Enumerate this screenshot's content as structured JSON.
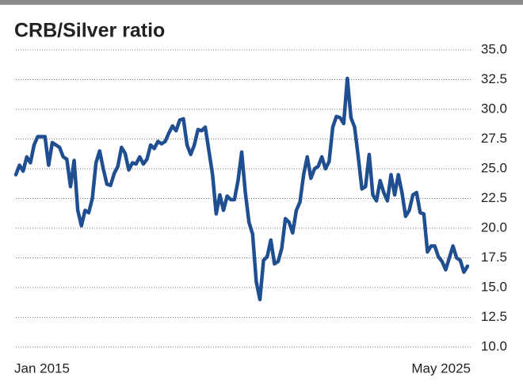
{
  "chart_data": {
    "type": "line",
    "title": "CRB/Silver ratio",
    "categories": [
      "Jan 2015",
      null,
      null,
      null,
      null,
      null,
      null,
      null,
      null,
      null,
      null,
      null,
      null,
      null,
      null,
      null,
      null,
      null,
      null,
      null,
      null,
      null,
      null,
      null,
      null,
      null,
      null,
      null,
      null,
      null,
      null,
      null,
      null,
      null,
      null,
      null,
      null,
      null,
      null,
      null,
      null,
      null,
      null,
      null,
      null,
      null,
      null,
      null,
      null,
      null,
      null,
      null,
      null,
      null,
      null,
      null,
      null,
      null,
      null,
      null,
      null,
      null,
      null,
      null,
      null,
      null,
      null,
      null,
      null,
      null,
      null,
      null,
      null,
      null,
      null,
      null,
      null,
      null,
      null,
      null,
      null,
      null,
      null,
      null,
      null,
      null,
      null,
      null,
      null,
      null,
      null,
      null,
      null,
      null,
      null,
      null,
      null,
      null,
      null,
      null,
      null,
      null,
      null,
      null,
      null,
      null,
      null,
      null,
      null,
      null,
      null,
      null,
      null,
      null,
      null,
      null,
      null,
      null,
      null,
      null,
      null,
      null,
      null,
      null,
      "May 2025"
    ],
    "series": [
      {
        "name": "CRB/Silver ratio",
        "color": "#1f4e91",
        "values": [
          24.5,
          25.3,
          24.8,
          26,
          25.5,
          27,
          27.7,
          27.7,
          27.7,
          25.3,
          27.2,
          27,
          26.8,
          26,
          25.8,
          23.5,
          25.7,
          21.5,
          20.2,
          21.5,
          21.3,
          22.5,
          25.5,
          26.5,
          25,
          23.7,
          23.6,
          24.6,
          25.2,
          26.8,
          26.3,
          24.9,
          25.5,
          25.4,
          26,
          25.4,
          25.8,
          27,
          26.7,
          27.3,
          27.1,
          27.3,
          28,
          28.6,
          28.2,
          29.1,
          29.2,
          27,
          26.2,
          27,
          28.3,
          28.2,
          28.5,
          26.5,
          24.5,
          21.2,
          22.8,
          21.5,
          22.7,
          22.4,
          22.4,
          24,
          26.4,
          23,
          20.5,
          19.5,
          15.5,
          14,
          17.3,
          17.6,
          19,
          17,
          17.2,
          18.3,
          20.8,
          20.5,
          19.6,
          21.5,
          22.2,
          24.5,
          26,
          24.2,
          25,
          25.2,
          26,
          25,
          25.6,
          28.5,
          29.4,
          29.3,
          28.8,
          32.6,
          29.3,
          28.5,
          26,
          23.3,
          23.5,
          26.2,
          22.8,
          22.3,
          24,
          23,
          22.3,
          24.5,
          22.8,
          24.5,
          23,
          21,
          21.5,
          22.8,
          23,
          21.3,
          21.2,
          18,
          18.5,
          18.5,
          17.6,
          17.2,
          16.5,
          17.5,
          18.5,
          17.5,
          17.3,
          16.3,
          16.8
        ]
      }
    ],
    "ylim": [
      10,
      35
    ],
    "yticks": [
      {
        "value": 10,
        "label": "10.0"
      },
      12.5,
      {
        "value": 15,
        "label": "15.0"
      },
      17.5,
      {
        "value": 20,
        "label": "20.0"
      },
      22.5,
      {
        "value": 25,
        "label": "25.0"
      },
      27.5,
      {
        "value": 30,
        "label": "30.0"
      },
      32.5,
      {
        "value": 35,
        "label": "35.0"
      }
    ],
    "grid": true
  }
}
